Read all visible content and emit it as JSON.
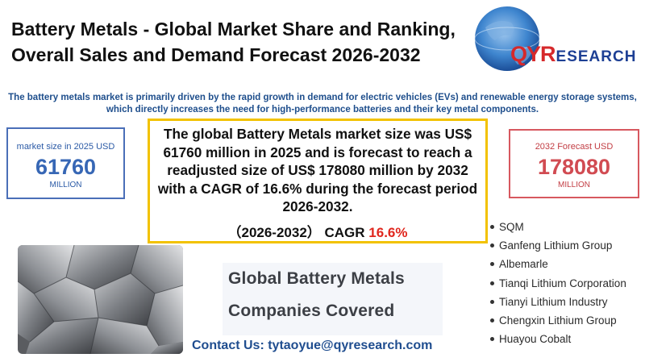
{
  "header": {
    "title_line1": "Battery Metals - Global Market Share and Ranking,",
    "title_line2": "Overall Sales and Demand Forecast 2026-2032"
  },
  "logo": {
    "part_qy": "QY",
    "part_r": "R",
    "part_rest": "ESEARCH",
    "icon": "globe-logo-icon"
  },
  "intro": {
    "line1": "The battery metals market is primarily driven by the rapid growth in demand for electric vehicles (EVs) and renewable energy storage systems,",
    "line2": "which directly increases the need for high-performance batteries and their key metal components."
  },
  "stat_2025": {
    "label": "market size in 2025 USD",
    "value": "61760",
    "unit": "MILLION",
    "border_color": "#4a6fb8"
  },
  "stat_2032": {
    "label": "2032 Forecast  USD",
    "value": "178080",
    "unit": "MILLION",
    "border_color": "#d7585f"
  },
  "summary": {
    "text": "The global Battery Metals market size was US$ 61760 million in 2025 and is forecast to reach a readjusted size of US$ 178080 million by 2032 with a CAGR of 16.6% during the forecast period 2026-2032.",
    "cagr_prefix": "（2026-2032） CAGR ",
    "cagr_value": "16.6%",
    "accent_color": "#e0261d"
  },
  "companies": {
    "heading_line1": "Global Battery Metals",
    "heading_line2": "Companies Covered",
    "items": [
      "SQM",
      "Ganfeng Lithium Group",
      "Albemarle",
      "Tianqi Lithium Corporation",
      "Tianyi Lithium Industry",
      "Chengxin Lithium Group",
      "Huayou Cobalt"
    ]
  },
  "contact": {
    "text": "Contact Us: tytaoyue@qyresearch.com"
  },
  "image": {
    "icon": "metal-ore-image"
  }
}
